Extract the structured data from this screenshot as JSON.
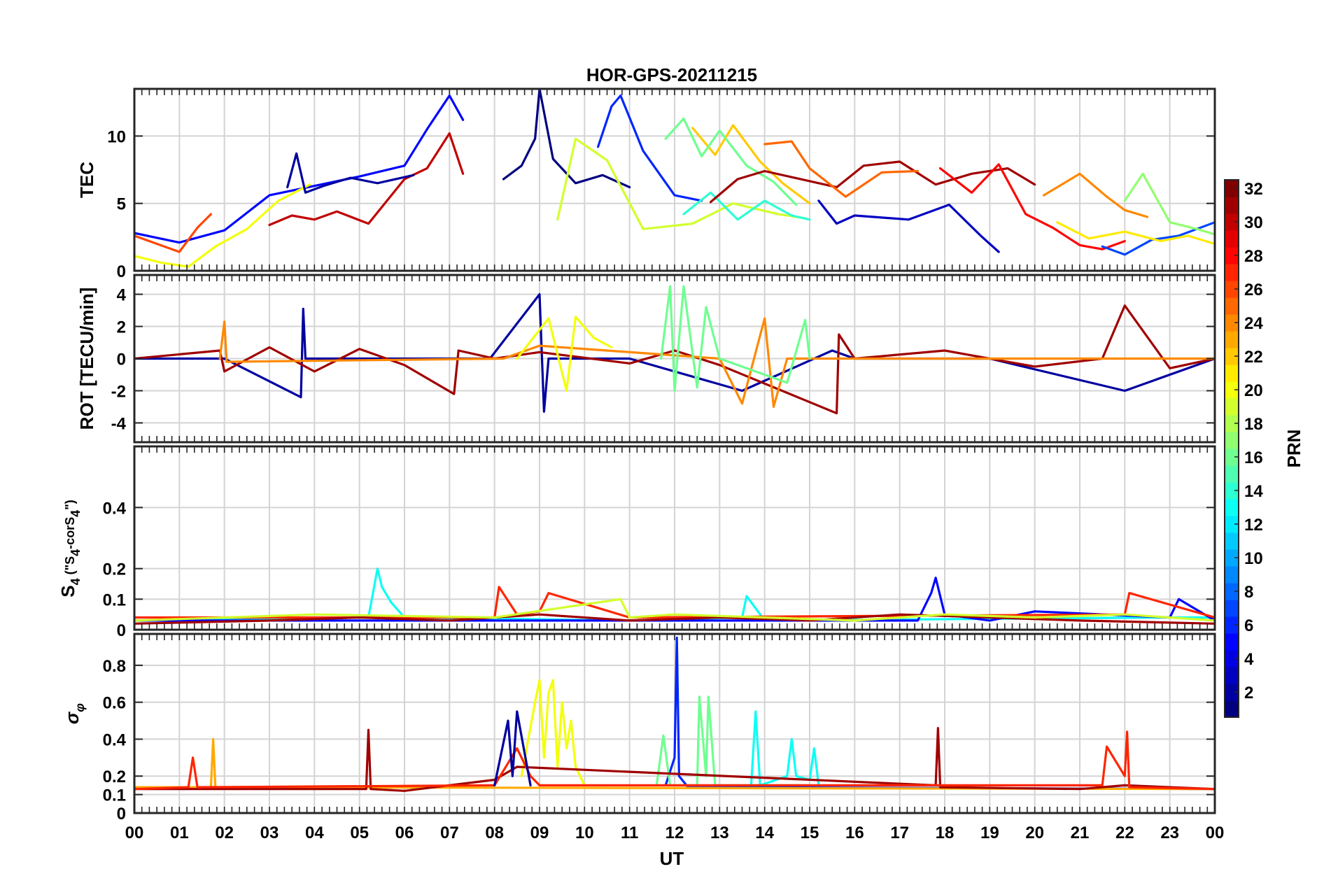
{
  "chart_data": {
    "type": "line",
    "title": "HOR-GPS-20211215",
    "xlabel": "UT",
    "xlim": [
      0,
      24
    ],
    "x_tick_labels": [
      "00",
      "01",
      "02",
      "03",
      "04",
      "05",
      "06",
      "07",
      "08",
      "09",
      "10",
      "11",
      "12",
      "13",
      "14",
      "15",
      "16",
      "17",
      "18",
      "19",
      "20",
      "21",
      "22",
      "23",
      "00"
    ],
    "grid": true,
    "panels": [
      {
        "id": "tec",
        "ylabel": "TEC",
        "ylim": [
          0,
          13.5
        ],
        "yticks": [
          0,
          5,
          10
        ],
        "ytick_labels": [
          "0",
          "5",
          "10"
        ],
        "series": [
          {
            "prn": 5,
            "x": [
              0,
              1,
              2,
              3,
              4,
              5,
              6,
              6.5,
              7,
              7.3
            ],
            "y": [
              2.8,
              2.1,
              3.0,
              5.6,
              6.3,
              7.0,
              7.8,
              10.5,
              13.0,
              11.2
            ]
          },
          {
            "prn": 30,
            "x": [
              3,
              3.5,
              4,
              4.5,
              5.2,
              6,
              6.5,
              7,
              7.3
            ],
            "y": [
              3.4,
              4.1,
              3.8,
              4.4,
              3.5,
              6.8,
              7.6,
              10.2,
              7.2
            ]
          },
          {
            "prn": 26,
            "x": [
              0,
              0.5,
              1,
              1.4,
              1.7
            ],
            "y": [
              2.6,
              2.0,
              1.4,
              3.2,
              4.2
            ]
          },
          {
            "prn": 20,
            "x": [
              0,
              0.6,
              1.2,
              1.8,
              2.5,
              3.2,
              3.9
            ],
            "y": [
              1.1,
              0.6,
              0.3,
              1.8,
              3.1,
              5.2,
              6.4
            ]
          },
          {
            "prn": 2,
            "x": [
              3.4,
              3.6,
              3.8,
              4.2,
              4.8,
              5.4,
              6.2
            ],
            "y": [
              6.2,
              8.7,
              5.8,
              6.3,
              6.9,
              6.5,
              7.1
            ]
          },
          {
            "prn": 1,
            "x": [
              8.2,
              8.6,
              8.9,
              9.0,
              9.3,
              9.8,
              10.4,
              11.0
            ],
            "y": [
              6.8,
              7.8,
              9.8,
              13.5,
              8.3,
              6.5,
              7.1,
              6.2
            ]
          },
          {
            "prn": 6,
            "x": [
              10.3,
              10.6,
              10.8,
              11.3,
              12,
              12.6
            ],
            "y": [
              9.2,
              12.2,
              13.0,
              8.9,
              5.6,
              5.2
            ]
          },
          {
            "prn": 19,
            "x": [
              9.4,
              9.8,
              10.5,
              11.3,
              12.4,
              13.3,
              14.3,
              14.9
            ],
            "y": [
              3.8,
              9.8,
              8.2,
              3.1,
              3.5,
              5.0,
              4.2,
              3.9
            ]
          },
          {
            "prn": 22,
            "x": [
              12.4,
              12.9,
              13.3,
              13.9,
              14.4,
              15.0
            ],
            "y": [
              10.6,
              8.6,
              10.8,
              8.1,
              6.5,
              5.0
            ]
          },
          {
            "prn": 16,
            "x": [
              11.8,
              12.2,
              12.6,
              13.0,
              13.6,
              14.2,
              14.7
            ],
            "y": [
              9.8,
              11.3,
              8.5,
              10.4,
              7.8,
              6.6,
              4.9
            ]
          },
          {
            "prn": 14,
            "x": [
              12.2,
              12.8,
              13.4,
              14.0,
              14.6,
              15.0
            ],
            "y": [
              4.2,
              5.8,
              3.8,
              5.2,
              4.1,
              3.8
            ]
          },
          {
            "prn": 31,
            "x": [
              12.8,
              13.4,
              14.0,
              15.6,
              16.2,
              17.0,
              17.8,
              18.6,
              19.4,
              20.0
            ],
            "y": [
              5.1,
              6.8,
              7.4,
              6.2,
              7.8,
              8.1,
              6.4,
              7.2,
              7.6,
              6.4
            ]
          },
          {
            "prn": 25,
            "x": [
              14.0,
              14.6,
              15.0,
              15.8,
              16.6,
              17.4
            ],
            "y": [
              9.4,
              9.6,
              7.6,
              5.5,
              7.3,
              7.4
            ]
          },
          {
            "prn": 3,
            "x": [
              15.2,
              15.6,
              16.0,
              17.2,
              18.1,
              18.8,
              19.2
            ],
            "y": [
              5.2,
              3.5,
              4.1,
              3.8,
              4.9,
              2.6,
              1.4
            ]
          },
          {
            "prn": 28,
            "x": [
              17.9,
              18.6,
              19.2,
              19.8,
              20.4,
              21.0,
              21.5,
              22.0
            ],
            "y": [
              7.6,
              5.8,
              7.9,
              4.2,
              3.2,
              1.9,
              1.6,
              2.2
            ]
          },
          {
            "prn": 24,
            "x": [
              20.2,
              21.0,
              21.6,
              22.0,
              22.5
            ],
            "y": [
              5.6,
              7.2,
              5.5,
              4.5,
              4.0
            ]
          },
          {
            "prn": 7,
            "x": [
              21.5,
              22.0,
              22.6,
              23.2,
              24.0
            ],
            "y": [
              1.8,
              1.2,
              2.3,
              2.6,
              3.6
            ]
          },
          {
            "prn": 21,
            "x": [
              20.5,
              21.2,
              22.0,
              22.8,
              23.4,
              24.0
            ],
            "y": [
              3.6,
              2.4,
              2.9,
              2.2,
              2.6,
              2.0
            ]
          },
          {
            "prn": 17,
            "x": [
              22.0,
              22.4,
              23.0,
              23.6,
              24.0
            ],
            "y": [
              5.2,
              7.2,
              3.6,
              3.1,
              2.7
            ]
          }
        ]
      },
      {
        "id": "rot",
        "ylabel": "ROT [TECU/min]",
        "ylim": [
          -5.2,
          5.2
        ],
        "yticks": [
          -4,
          -2,
          0,
          2,
          4
        ],
        "ytick_labels": [
          "-4",
          "-2",
          "0",
          "2",
          "4"
        ],
        "series": [
          {
            "prn": 2,
            "x": [
              0,
              2,
              3.7,
              3.75,
              3.8,
              7.9,
              9.0,
              9.1,
              9.2,
              11.0,
              13.5,
              15.5,
              16.0,
              19.0,
              22.0,
              24.0
            ],
            "y": [
              0,
              0,
              -2.4,
              3.1,
              0,
              0,
              4.0,
              -3.3,
              0,
              0,
              -2.0,
              0.5,
              0,
              0,
              -2.0,
              0
            ]
          },
          {
            "prn": 31,
            "x": [
              0,
              1.9,
              2,
              3,
              4,
              5,
              6,
              7.1,
              7.2,
              8,
              9,
              11,
              12,
              13,
              15.6,
              15.65,
              16,
              18,
              20,
              21.5,
              22,
              23,
              24
            ],
            "y": [
              0,
              0.5,
              -0.8,
              0.7,
              -0.8,
              0.6,
              -0.4,
              -2.2,
              0.5,
              0,
              0.4,
              -0.3,
              0.5,
              -0.4,
              -3.4,
              1.5,
              0,
              0.5,
              -0.5,
              0,
              3.3,
              -0.6,
              0
            ]
          },
          {
            "prn": 24,
            "x": [
              1.9,
              2.0,
              2.05,
              8.2,
              9.0,
              13.0,
              13.5,
              14.0,
              14.2,
              14.5,
              24.0
            ],
            "y": [
              0,
              2.3,
              -0.2,
              0,
              0.8,
              0,
              -2.8,
              2.5,
              -3.0,
              0,
              0
            ]
          },
          {
            "prn": 20,
            "x": [
              8.5,
              9.2,
              9.6,
              9.8,
              10.2,
              10.6
            ],
            "y": [
              0,
              2.5,
              -2.0,
              2.6,
              1.3,
              0.7
            ]
          },
          {
            "prn": 16,
            "x": [
              11.7,
              11.9,
              12.0,
              12.2,
              12.5,
              12.7,
              13,
              14.5,
              14.9,
              15.0
            ],
            "y": [
              0,
              4.5,
              -2.0,
              4.5,
              -1.8,
              3.2,
              0,
              -1.5,
              2.4,
              0
            ]
          }
        ]
      },
      {
        "id": "s4",
        "ylabel": "S_4 (\"S_4-corS_4\")",
        "ylim": [
          0,
          0.6
        ],
        "yticks": [
          0,
          0.1,
          0.2,
          0.4
        ],
        "ytick_labels": [
          "0",
          "0.1",
          "0.2",
          "0.4"
        ],
        "series": [
          {
            "prn": 13,
            "x": [
              0,
              5.2,
              5.4,
              5.5,
              5.7,
              6.0,
              11.0,
              13.5,
              13.6,
              14.0,
              23.0,
              24.0
            ],
            "y": [
              0.03,
              0.04,
              0.2,
              0.14,
              0.09,
              0.04,
              0.03,
              0.04,
              0.11,
              0.03,
              0.04,
              0.04
            ]
          },
          {
            "prn": 5,
            "x": [
              0,
              17.4,
              17.7,
              17.8,
              18.0,
              19.0,
              20.0,
              23.0,
              23.2,
              24.0
            ],
            "y": [
              0.03,
              0.03,
              0.12,
              0.17,
              0.05,
              0.03,
              0.06,
              0.04,
              0.1,
              0.03
            ]
          },
          {
            "prn": 27,
            "x": [
              0,
              8.0,
              8.1,
              8.5,
              9.0,
              9.2,
              11.0,
              22.0,
              22.1,
              24.0
            ],
            "y": [
              0.04,
              0.04,
              0.14,
              0.05,
              0.06,
              0.12,
              0.04,
              0.05,
              0.12,
              0.04
            ]
          },
          {
            "prn": 31,
            "x": [
              0,
              3,
              5,
              7,
              9,
              11,
              13,
              15,
              17,
              19,
              21,
              24
            ],
            "y": [
              0.02,
              0.03,
              0.04,
              0.03,
              0.05,
              0.03,
              0.04,
              0.03,
              0.05,
              0.04,
              0.03,
              0.02
            ]
          },
          {
            "prn": 19,
            "x": [
              0,
              4,
              8,
              10.8,
              11,
              12,
              14,
              16,
              18,
              20,
              22,
              24
            ],
            "y": [
              0.03,
              0.05,
              0.04,
              0.1,
              0.04,
              0.05,
              0.04,
              0.03,
              0.05,
              0.04,
              0.05,
              0.03
            ]
          }
        ]
      },
      {
        "id": "sigma",
        "ylabel": "σ_φ",
        "ylim": [
          0,
          0.97
        ],
        "yticks": [
          0,
          0.1,
          0.2,
          0.4,
          0.6,
          0.8
        ],
        "ytick_labels": [
          "0",
          "0.1",
          "0.2",
          "0.4",
          "0.6",
          "0.8"
        ],
        "series": [
          {
            "prn": 20,
            "x": [
              8.6,
              8.9,
              9.0,
              9.1,
              9.2,
              9.3,
              9.4,
              9.5,
              9.6,
              9.7,
              9.8,
              10.0
            ],
            "y": [
              0.2,
              0.6,
              0.72,
              0.3,
              0.65,
              0.72,
              0.25,
              0.6,
              0.35,
              0.5,
              0.25,
              0.15
            ]
          },
          {
            "prn": 6,
            "x": [
              11.8,
              12.0,
              12.05,
              12.1,
              12.3,
              24.0
            ],
            "y": [
              0.15,
              0.3,
              0.95,
              0.2,
              0.14,
              0.13
            ]
          },
          {
            "prn": 16,
            "x": [
              11.6,
              11.75,
              11.9,
              12.5,
              12.55,
              12.7,
              12.75,
              12.9,
              14.0,
              14.5,
              15.0
            ],
            "y": [
              0.15,
              0.42,
              0.15,
              0.15,
              0.63,
              0.2,
              0.63,
              0.15,
              0.15,
              0.15,
              0.15
            ]
          },
          {
            "prn": 13,
            "x": [
              13.7,
              13.8,
              13.9,
              14.5,
              14.6,
              14.7,
              15.0,
              15.1,
              15.2
            ],
            "y": [
              0.15,
              0.55,
              0.15,
              0.2,
              0.4,
              0.2,
              0.18,
              0.35,
              0.15
            ]
          },
          {
            "prn": 23,
            "x": [
              0,
              1.7,
              1.75,
              1.8,
              24.0
            ],
            "y": [
              0.14,
              0.14,
              0.4,
              0.14,
              0.13
            ]
          },
          {
            "prn": 31,
            "x": [
              0,
              5.15,
              5.2,
              5.25,
              6,
              7,
              8,
              8.5,
              17.8,
              17.85,
              17.9,
              21.0,
              22.0,
              24.0
            ],
            "y": [
              0.13,
              0.13,
              0.45,
              0.13,
              0.12,
              0.15,
              0.18,
              0.25,
              0.15,
              0.46,
              0.14,
              0.13,
              0.15,
              0.13
            ]
          },
          {
            "prn": 27,
            "x": [
              0,
              1.2,
              1.3,
              1.4,
              8.0,
              8.5,
              8.8,
              9.0,
              21.5,
              21.6,
              22.0,
              22.05,
              22.1,
              24.0
            ],
            "y": [
              0.13,
              0.14,
              0.3,
              0.14,
              0.15,
              0.35,
              0.2,
              0.15,
              0.15,
              0.36,
              0.2,
              0.44,
              0.14,
              0.13
            ]
          },
          {
            "prn": 2,
            "x": [
              8.0,
              8.3,
              8.4,
              8.5,
              8.8
            ],
            "y": [
              0.15,
              0.5,
              0.2,
              0.55,
              0.15
            ]
          }
        ]
      }
    ],
    "colorbar": {
      "label": "PRN",
      "range": [
        1,
        32
      ],
      "tick_values": [
        2,
        4,
        6,
        8,
        10,
        12,
        14,
        16,
        18,
        20,
        22,
        24,
        26,
        28,
        30,
        32
      ],
      "tick_labels": [
        "2",
        "4",
        "6",
        "8",
        "10",
        "12",
        "14",
        "16",
        "18",
        "20",
        "22",
        "24",
        "26",
        "28",
        "30",
        "32"
      ]
    }
  }
}
